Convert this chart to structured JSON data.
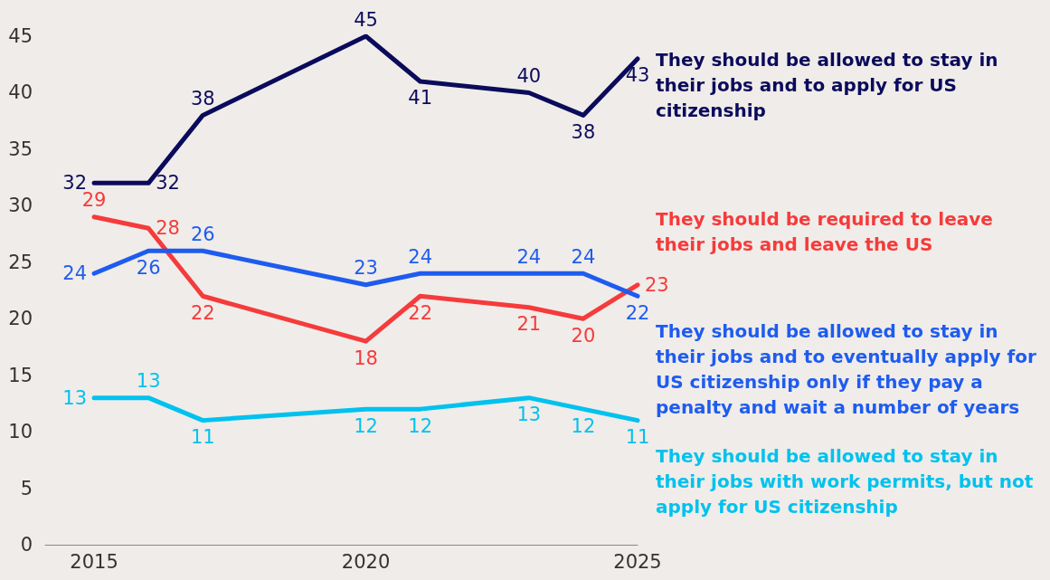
{
  "chart_data": {
    "type": "line",
    "x": [
      2015,
      2016,
      2017,
      2020,
      2021,
      2023,
      2024,
      2025
    ],
    "xlim": [
      2014.1,
      2025
    ],
    "xticks": [
      2015,
      2020,
      2025
    ],
    "ylim": [
      0,
      45
    ],
    "yticks": [
      0,
      5,
      10,
      15,
      20,
      25,
      30,
      35,
      40,
      45
    ],
    "grid": false,
    "legend": false,
    "data_labels": true,
    "marker": "none",
    "line_style": "solid",
    "series": [
      {
        "name": "They should be allowed to stay in their jobs and to apply for US citizenship",
        "color": "#0b0b5c",
        "values": [
          32,
          32,
          38,
          45,
          41,
          40,
          38,
          43
        ]
      },
      {
        "name": "They should be required to leave their jobs and leave the US",
        "color": "#f53b3b",
        "values": [
          29,
          28,
          22,
          18,
          22,
          21,
          20,
          23
        ]
      },
      {
        "name": "They should be allowed to stay in their jobs and to eventually apply for US citizenship only if they pay a penalty and wait a number of years",
        "color": "#1e5cf0",
        "values": [
          24,
          26,
          26,
          23,
          24,
          24,
          24,
          22
        ]
      },
      {
        "name": "They should be allowed to stay in their jobs with work permits, but not apply for US citizenship",
        "color": "#00c2ee",
        "values": [
          13,
          13,
          11,
          12,
          12,
          13,
          12,
          11
        ]
      }
    ]
  }
}
